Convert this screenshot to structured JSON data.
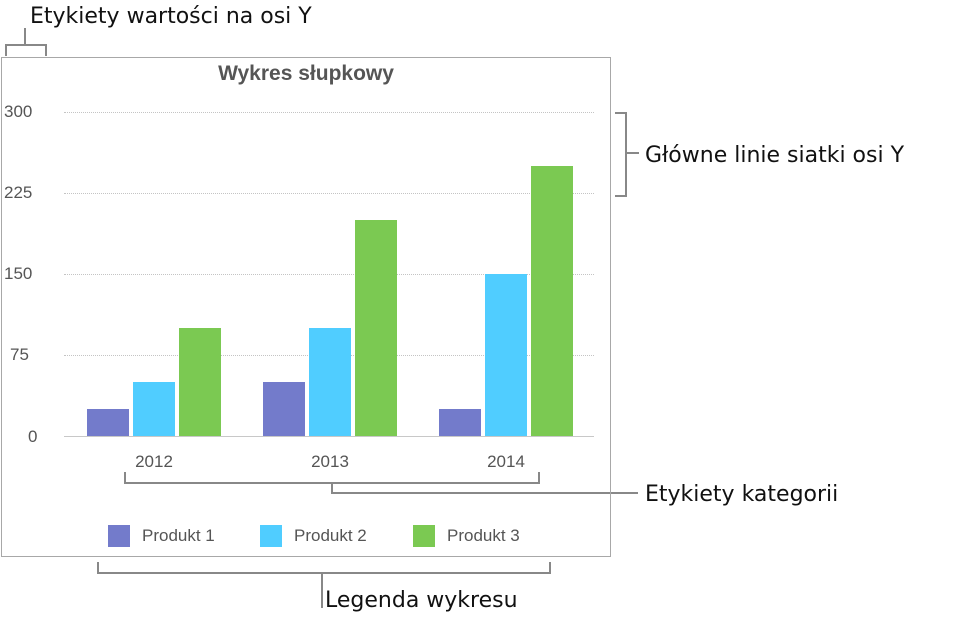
{
  "annotations": {
    "y_value_labels": "Etykiety wartości na osi Y",
    "major_gridlines": "Główne linie siatki osi Y",
    "category_labels": "Etykiety kategorii",
    "legend": "Legenda wykresu"
  },
  "colors": {
    "produkt1": "#737bcb",
    "produkt2": "#50cdff",
    "produkt3": "#7bc952"
  },
  "chart_data": {
    "type": "bar",
    "title": "Wykres słupkowy",
    "categories": [
      "2012",
      "2013",
      "2014"
    ],
    "series": [
      {
        "name": "Produkt 1",
        "values": [
          25,
          50,
          25
        ]
      },
      {
        "name": "Produkt 2",
        "values": [
          50,
          100,
          150
        ]
      },
      {
        "name": "Produkt 3",
        "values": [
          100,
          200,
          250
        ]
      }
    ],
    "yticks": [
      "300",
      "225",
      "150",
      "75",
      "0"
    ],
    "ylim": [
      0,
      300
    ],
    "xlabel": "",
    "ylabel": "",
    "grid": true,
    "legend_position": "bottom"
  }
}
